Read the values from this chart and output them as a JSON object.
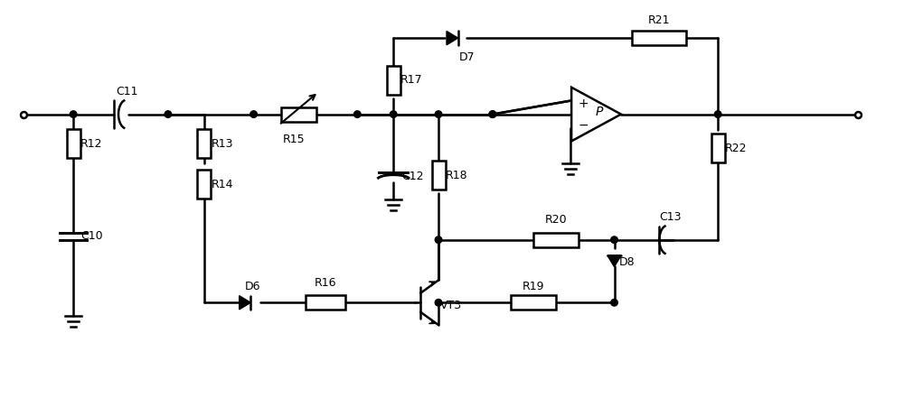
{
  "background": "#ffffff",
  "lw": 1.8,
  "fig_width": 10.0,
  "fig_height": 4.41,
  "xlim": [
    0,
    100
  ],
  "ylim": [
    0,
    44.1
  ]
}
